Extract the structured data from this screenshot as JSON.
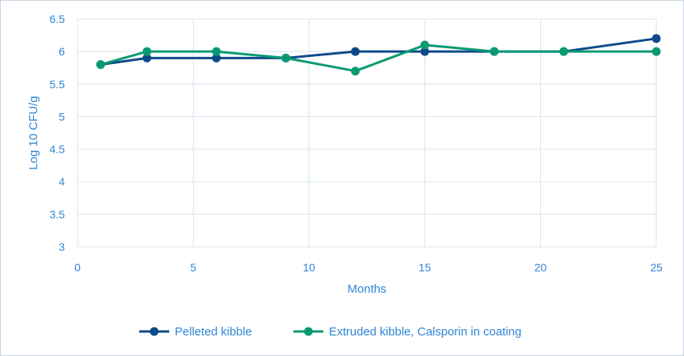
{
  "chart_data": {
    "type": "line",
    "title": "",
    "xlabel": "Months",
    "ylabel": "Log 10 CFU/g",
    "xlim": [
      0,
      25
    ],
    "ylim": [
      3,
      6.5
    ],
    "xticks": [
      0,
      5,
      10,
      15,
      20,
      25
    ],
    "yticks": [
      3,
      3.5,
      4,
      4.5,
      5,
      5.5,
      6,
      6.5
    ],
    "xtick_labels": [
      "0",
      "5",
      "10",
      "15",
      "20",
      "25"
    ],
    "ytick_labels": [
      "3",
      "3.5",
      "4",
      "4.5",
      "5",
      "5.5",
      "6",
      "6.5"
    ],
    "grid": true,
    "legend_position": "bottom",
    "series": [
      {
        "name": "Pelleted kibble",
        "color": "#0e4a8a",
        "x": [
          1,
          3,
          6,
          9,
          12,
          15,
          18,
          21,
          25
        ],
        "y": [
          5.8,
          5.9,
          5.9,
          5.9,
          6.0,
          6.0,
          6.0,
          6.0,
          6.2
        ]
      },
      {
        "name": "Extruded kibble, Calsporin in coating",
        "color": "#0a9a73",
        "x": [
          1,
          3,
          6,
          9,
          12,
          15,
          18,
          21,
          25
        ],
        "y": [
          5.8,
          6.0,
          6.0,
          5.9,
          5.7,
          6.1,
          6.0,
          6.0,
          6.0
        ]
      }
    ],
    "colors": {
      "grid": "#d6e4f0",
      "text": "#2f86d6"
    }
  }
}
